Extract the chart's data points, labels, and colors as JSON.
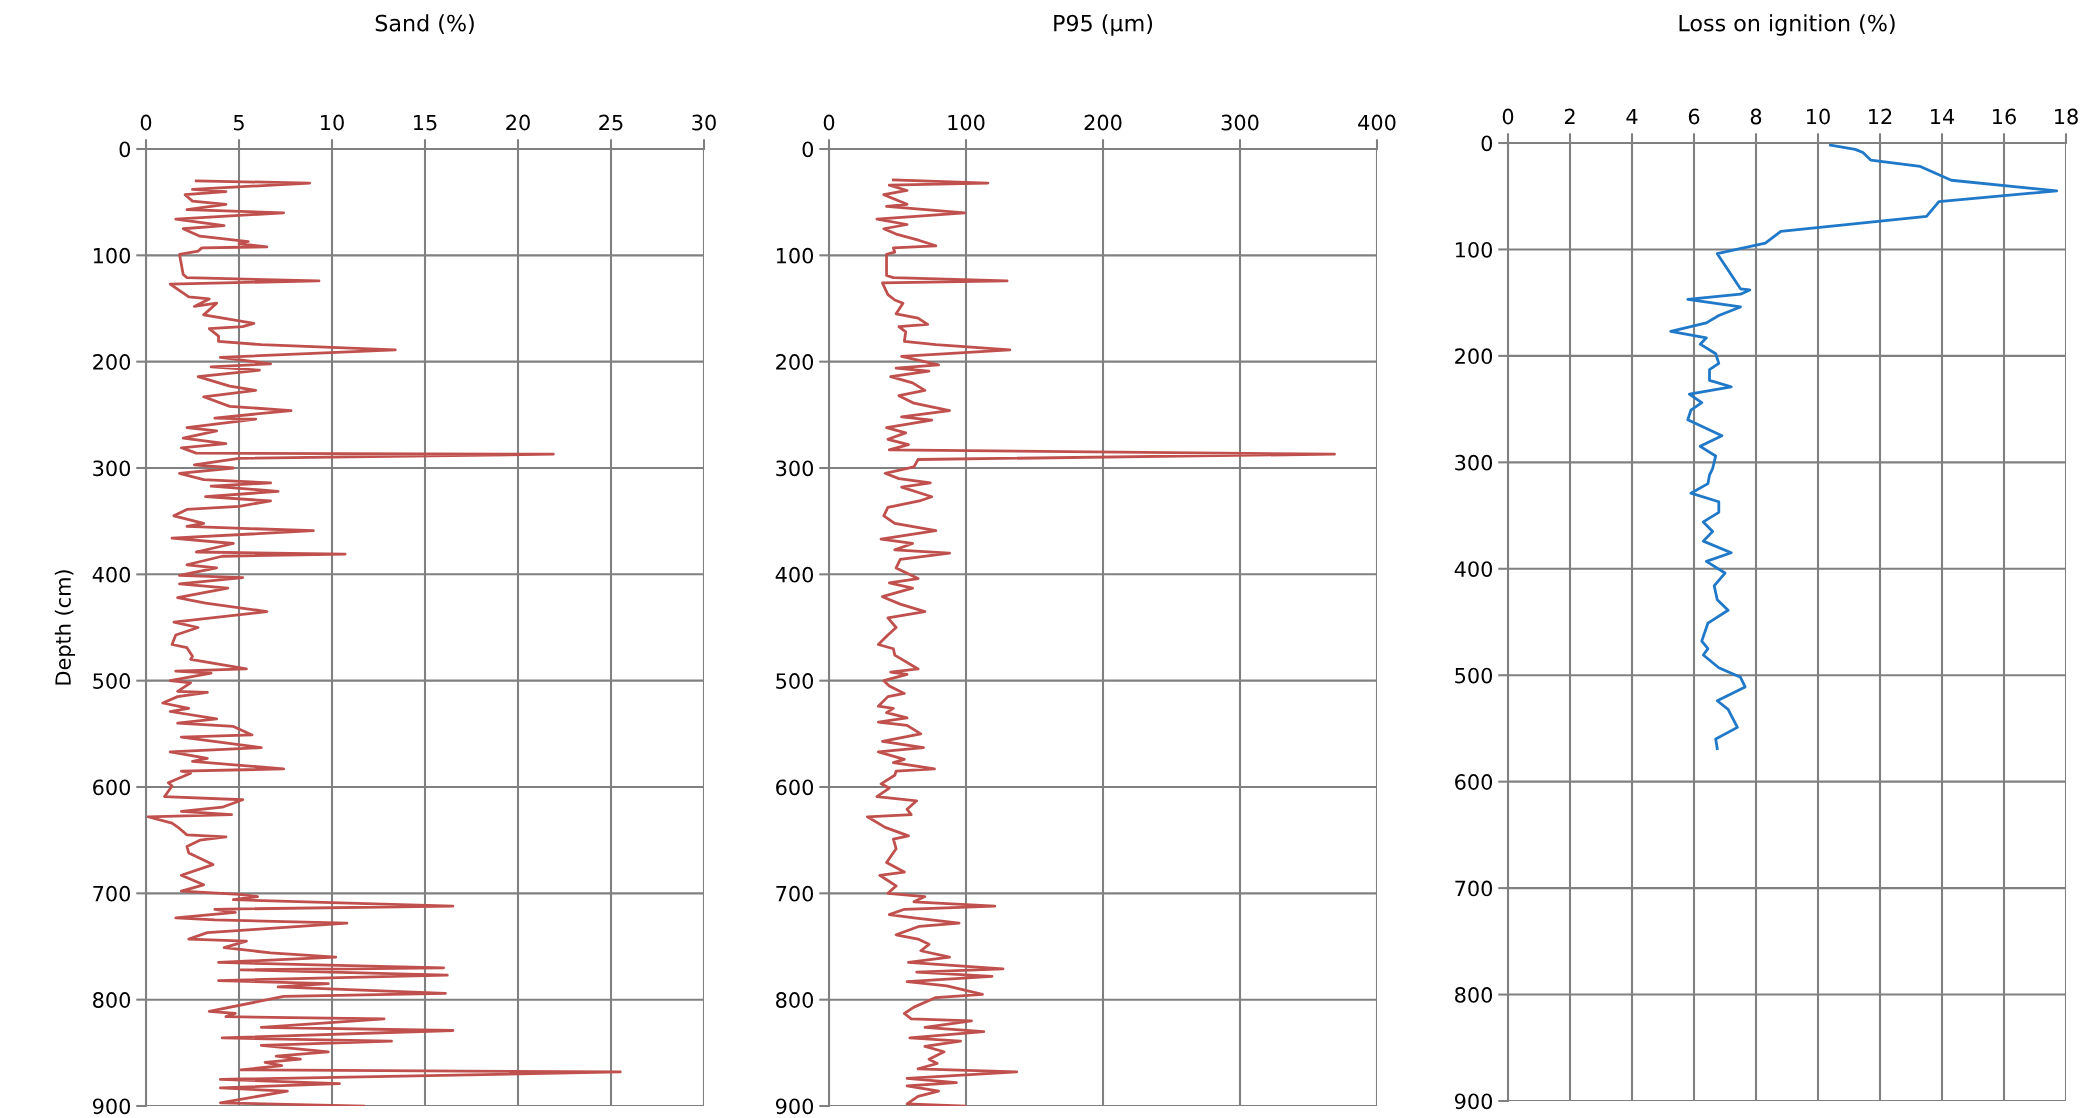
{
  "chart_data": [
    {
      "type": "line",
      "title": "Sand (%)",
      "ylabel": "Depth (cm)",
      "xlim": [
        0,
        30
      ],
      "xticks": [
        0,
        5,
        10,
        15,
        20,
        25,
        30
      ],
      "ylim": [
        900,
        0
      ],
      "yticks": [
        0,
        100,
        200,
        300,
        400,
        500,
        600,
        700,
        800,
        900
      ],
      "grid": true,
      "marker": "none",
      "line_style": "solid",
      "series": [
        {
          "color": "#c0504d",
          "x": [
            2.7,
            8.8,
            2.5,
            4.3,
            2.1,
            2.5,
            4.3,
            2.2,
            7.4,
            1.6,
            4.2,
            2.0,
            2.9,
            5.5,
            5.0,
            6.5,
            3.0,
            2.8,
            1.8,
            2.0,
            2.2,
            9.3,
            1.3,
            2.3,
            3.4,
            2.6,
            3.8,
            3.1,
            5.8,
            5.2,
            3.4,
            3.9,
            3.9,
            6.2,
            13.4,
            4.0,
            6.7,
            3.5,
            6.1,
            2.8,
            4.5,
            5.9,
            3.1,
            4.5,
            7.8,
            3.7,
            5.9,
            2.2,
            3.8,
            2.0,
            4.3,
            1.9,
            2.7,
            21.9,
            5.0,
            2.6,
            4.7,
            1.8,
            3.1,
            6.7,
            3.5,
            7.1,
            3.2,
            6.7,
            5.0,
            2.2,
            1.5,
            3.1,
            2.2,
            9.0,
            1.4,
            4.7,
            2.7,
            10.7,
            4.1,
            2.2,
            3.8,
            1.8,
            5.2,
            1.8,
            4.4,
            1.7,
            3.2,
            6.5,
            1.5,
            2.8,
            1.6,
            1.4,
            2.2,
            2.5,
            2.4,
            5.4,
            1.6,
            3.5,
            1.3,
            2.4,
            1.7,
            3.3,
            1.7,
            0.9,
            2.3,
            1.3,
            3.8,
            1.7,
            4.7,
            5.7,
            1.9,
            6.2,
            1.3,
            3.3,
            2.5,
            7.4,
            1.9,
            2.4,
            1.2,
            1.4,
            1.0,
            5.2,
            4.1,
            1.9,
            4.6,
            0.1,
            1.4,
            1.8,
            2.2,
            4.3,
            2.9,
            2.2,
            2.3,
            3.6,
            1.9,
            3.1,
            1.9,
            5.0,
            6.0,
            4.7,
            16.5,
            3.7,
            4.8,
            1.6,
            3.7,
            10.8,
            5.9,
            3.3,
            2.3,
            5.4,
            4.2,
            6.7,
            10.2,
            3.9,
            16.0,
            5.1,
            16.2,
            3.9,
            9.8,
            7.1,
            16.1,
            7.4,
            3.4,
            4.8,
            4.3,
            12.8,
            6.2,
            16.5,
            4.1,
            13.2,
            6.2,
            9.8,
            7.0,
            8.3,
            6.4,
            7.3,
            5.1,
            25.5,
            4.0,
            10.4,
            4.0,
            7.6,
            5.0,
            4.0,
            11.7
          ],
          "values": [
            30,
            32,
            38,
            40,
            43,
            49,
            52,
            57,
            60,
            66,
            72,
            75,
            82,
            87,
            89,
            92,
            93,
            96,
            99,
            118,
            121,
            124,
            127,
            139,
            141,
            148,
            145,
            156,
            164,
            167,
            169,
            176,
            181,
            184,
            189,
            196,
            202,
            205,
            208,
            214,
            223,
            227,
            233,
            242,
            246,
            253,
            254,
            262,
            265,
            272,
            277,
            281,
            286,
            287,
            291,
            297,
            300,
            305,
            311,
            314,
            317,
            322,
            327,
            331,
            336,
            339,
            345,
            352,
            355,
            359,
            366,
            371,
            379,
            381,
            383,
            391,
            394,
            401,
            403,
            409,
            413,
            422,
            427,
            435,
            445,
            450,
            457,
            466,
            469,
            477,
            480,
            489,
            491,
            493,
            500,
            502,
            510,
            511,
            515,
            521,
            526,
            529,
            536,
            540,
            543,
            551,
            553,
            563,
            567,
            573,
            576,
            583,
            585,
            587,
            596,
            599,
            609,
            612,
            619,
            623,
            626,
            628,
            634,
            639,
            645,
            647,
            650,
            656,
            662,
            673,
            683,
            692,
            698,
            701,
            703,
            706,
            712,
            715,
            718,
            723,
            725,
            728,
            734,
            737,
            743,
            745,
            751,
            756,
            760,
            765,
            770,
            772,
            777,
            782,
            785,
            788,
            794,
            797,
            811,
            813,
            816,
            818,
            826,
            829,
            836,
            839,
            843,
            849,
            853,
            856,
            859,
            862,
            866,
            868,
            875,
            879,
            883,
            886,
            894,
            897,
            900
          ]
        }
      ]
    },
    {
      "type": "line",
      "title": "P95 (µm)",
      "xlim": [
        0,
        400
      ],
      "xticks": [
        0,
        100,
        200,
        300,
        400
      ],
      "ylim": [
        900,
        0
      ],
      "yticks": [
        0,
        100,
        200,
        300,
        400,
        500,
        600,
        700,
        800,
        900
      ],
      "grid": true,
      "marker": "none",
      "line_style": "solid",
      "series": [
        {
          "color": "#c0504d",
          "x": [
            47,
            116,
            44,
            57,
            40,
            57,
            42,
            99,
            35,
            57,
            40,
            49,
            66,
            78,
            47,
            48,
            42,
            42,
            47,
            130,
            39,
            43,
            48,
            54,
            49,
            65,
            72,
            51,
            56,
            55,
            78,
            132,
            53,
            80,
            49,
            73,
            45,
            61,
            70,
            51,
            62,
            88,
            53,
            75,
            42,
            56,
            43,
            58,
            44,
            369,
            65,
            62,
            41,
            51,
            74,
            53,
            75,
            66,
            43,
            40,
            48,
            78,
            38,
            61,
            48,
            88,
            52,
            49,
            65,
            44,
            61,
            39,
            52,
            70,
            43,
            49,
            43,
            36,
            47,
            48,
            65,
            45,
            57,
            40,
            44,
            55,
            43,
            36,
            47,
            42,
            57,
            36,
            57,
            67,
            39,
            69,
            36,
            55,
            47,
            77,
            49,
            48,
            38,
            44,
            35,
            64,
            57,
            60,
            28,
            41,
            58,
            47,
            49,
            42,
            55,
            37,
            49,
            43,
            70,
            62,
            121,
            55,
            44,
            62,
            95,
            66,
            49,
            65,
            73,
            67,
            88,
            58,
            127,
            64,
            119,
            57,
            86,
            112,
            78,
            62,
            55,
            60,
            104,
            70,
            113,
            59,
            96,
            70,
            84,
            73,
            79,
            65,
            137,
            57,
            93,
            57,
            80,
            65,
            57,
            99
          ],
          "values": [
            29,
            32,
            34,
            39,
            43,
            52,
            54,
            60,
            66,
            71,
            75,
            80,
            86,
            91,
            93,
            97,
            99,
            119,
            121,
            124,
            126,
            137,
            142,
            145,
            155,
            159,
            165,
            167,
            172,
            181,
            184,
            189,
            195,
            203,
            206,
            209,
            214,
            220,
            227,
            232,
            239,
            246,
            252,
            255,
            262,
            267,
            273,
            278,
            283,
            287,
            292,
            299,
            305,
            310,
            314,
            318,
            327,
            331,
            337,
            345,
            352,
            359,
            367,
            371,
            377,
            380,
            386,
            394,
            404,
            408,
            413,
            421,
            428,
            435,
            441,
            450,
            457,
            466,
            470,
            476,
            489,
            492,
            494,
            500,
            505,
            512,
            515,
            524,
            526,
            530,
            535,
            539,
            542,
            550,
            557,
            563,
            567,
            574,
            577,
            583,
            585,
            589,
            597,
            601,
            609,
            613,
            621,
            626,
            628,
            638,
            646,
            649,
            658,
            671,
            680,
            683,
            693,
            700,
            703,
            708,
            712,
            715,
            720,
            723,
            728,
            731,
            739,
            743,
            748,
            754,
            760,
            765,
            771,
            774,
            778,
            783,
            787,
            795,
            798,
            807,
            813,
            818,
            820,
            826,
            830,
            836,
            839,
            844,
            849,
            856,
            860,
            865,
            868,
            874,
            878,
            881,
            886,
            891,
            898,
            900
          ]
        }
      ]
    },
    {
      "type": "line",
      "title": "Loss on ignition (%)",
      "xlim": [
        0,
        18
      ],
      "xticks": [
        0,
        2,
        4,
        6,
        8,
        10,
        12,
        14,
        16,
        18
      ],
      "ylim": [
        900,
        0
      ],
      "yticks": [
        0,
        100,
        200,
        300,
        400,
        500,
        600,
        700,
        800,
        900
      ],
      "grid": true,
      "marker": "none",
      "line_style": "solid",
      "series": [
        {
          "color": "#1f78c8",
          "x": [
            10.4,
            11.2,
            11.45,
            11.7,
            13.3,
            14.3,
            17.7,
            13.9,
            13.5,
            8.8,
            8.3,
            6.75,
            7.5,
            7.8,
            7.5,
            5.8,
            7.5,
            6.8,
            6.4,
            5.25,
            6.4,
            6.2,
            6.7,
            6.8,
            6.5,
            6.5,
            7.2,
            5.85,
            6.25,
            5.9,
            5.8,
            6.9,
            6.2,
            6.7,
            6.6,
            6.5,
            6.45,
            5.9,
            6.8,
            6.8,
            6.3,
            6.6,
            6.3,
            7.2,
            6.4,
            7.0,
            6.65,
            6.75,
            7.1,
            6.45,
            6.25,
            6.45,
            6.3,
            6.8,
            7.5,
            7.65,
            6.75,
            7.1,
            7.4,
            6.7,
            6.75
          ],
          "values": [
            2,
            6,
            9,
            16,
            22,
            35,
            45,
            55,
            69,
            83,
            94,
            104,
            137,
            138,
            142,
            147,
            154,
            162,
            169,
            177,
            183,
            189,
            198,
            207,
            213,
            223,
            229,
            236,
            244,
            251,
            260,
            275,
            285,
            294,
            306,
            312,
            320,
            329,
            337,
            347,
            356,
            365,
            374,
            385,
            393,
            404,
            416,
            429,
            439,
            451,
            468,
            475,
            481,
            493,
            502,
            511,
            524,
            532,
            549,
            560,
            569
          ]
        }
      ]
    }
  ]
}
